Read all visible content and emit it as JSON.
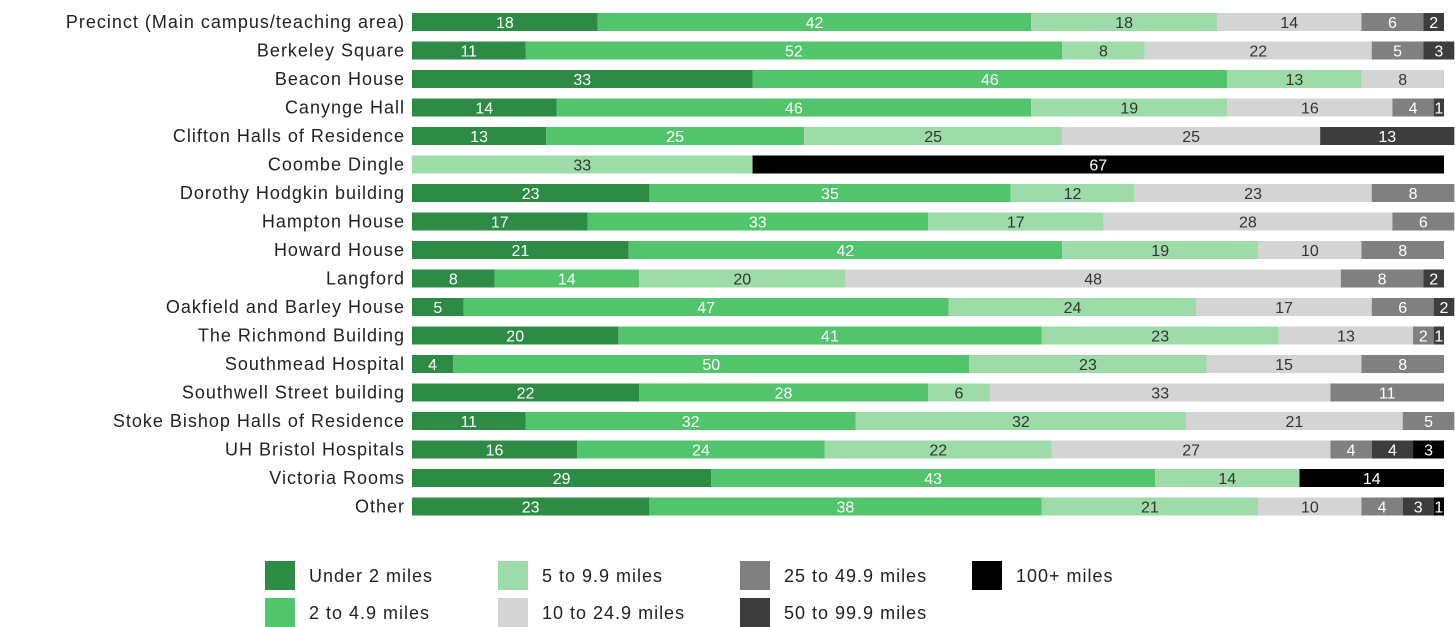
{
  "chart_data": {
    "type": "bar",
    "orientation": "horizontal",
    "stacked": true,
    "normalized_percent": true,
    "grid": false,
    "legend_position": "bottom",
    "categories": [
      "Precinct (Main campus/teaching area)",
      "Berkeley Square",
      "Beacon House",
      "Canynge Hall",
      "Clifton Halls of Residence",
      "Coombe Dingle",
      "Dorothy Hodgkin building",
      "Hampton House",
      "Howard House",
      "Langford",
      "Oakfield and Barley House",
      "The Richmond Building",
      "Southmead Hospital",
      "Southwell Street building",
      "Stoke Bishop Halls of Residence",
      "UH Bristol Hospitals",
      "Victoria Rooms",
      "Other"
    ],
    "series": [
      {
        "name": "Under 2 miles",
        "color": "#2e8b46",
        "label_color": "#ffffff",
        "values": [
          18,
          11,
          33,
          14,
          13,
          0,
          23,
          17,
          21,
          8,
          5,
          20,
          4,
          22,
          11,
          16,
          29,
          23
        ]
      },
      {
        "name": "2 to 4.9 miles",
        "color": "#52c46b",
        "label_color": "#ffffff",
        "values": [
          42,
          52,
          46,
          46,
          25,
          0,
          35,
          33,
          42,
          14,
          47,
          41,
          50,
          28,
          32,
          24,
          43,
          38
        ]
      },
      {
        "name": "5 to 9.9 miles",
        "color": "#9ddca9",
        "label_color": "#333333",
        "values": [
          18,
          8,
          13,
          19,
          25,
          33,
          12,
          17,
          19,
          20,
          24,
          23,
          23,
          6,
          32,
          22,
          14,
          21
        ]
      },
      {
        "name": "10 to 24.9 miles",
        "color": "#d4d4d4",
        "label_color": "#333333",
        "values": [
          14,
          22,
          8,
          16,
          25,
          0,
          23,
          28,
          10,
          48,
          17,
          13,
          15,
          33,
          21,
          27,
          0,
          10
        ]
      },
      {
        "name": "25 to 49.9 miles",
        "color": "#808080",
        "label_color": "#ffffff",
        "values": [
          6,
          5,
          0,
          4,
          0,
          0,
          8,
          6,
          8,
          8,
          6,
          2,
          8,
          11,
          5,
          4,
          0,
          4
        ]
      },
      {
        "name": "50 to 99.9 miles",
        "color": "#3d3d3d",
        "label_color": "#ffffff",
        "values": [
          2,
          3,
          0,
          1,
          13,
          0,
          0,
          0,
          0,
          2,
          2,
          1,
          0,
          0,
          0,
          4,
          0,
          3
        ]
      },
      {
        "name": "100+ miles",
        "color": "#000000",
        "label_color": "#ffffff",
        "values": [
          0,
          0,
          0,
          0,
          0,
          67,
          0,
          0,
          0,
          0,
          0,
          0,
          0,
          0,
          0,
          3,
          14,
          1
        ]
      }
    ],
    "xlim": [
      0,
      100
    ]
  }
}
